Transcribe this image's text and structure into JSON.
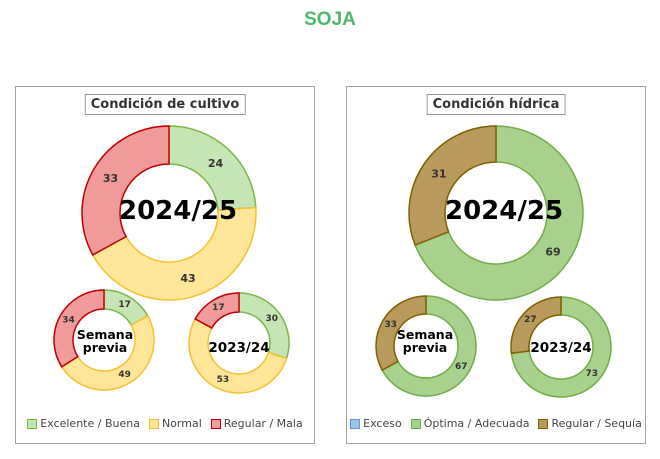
{
  "page_title": "SOJA",
  "chart_data": [
    {
      "type": "donut",
      "title": "Condición de cultivo",
      "legend": [
        {
          "name": "Excelente / Buena",
          "color": "#c6e5b4",
          "border": "#7ab648"
        },
        {
          "name": "Normal",
          "color": "#ffe699",
          "border": "#f2c230"
        },
        {
          "name": "Regular / Mala",
          "color": "#f19a9a",
          "border": "#c00000"
        }
      ],
      "rings": [
        {
          "label": "2024/25",
          "values": [
            24,
            43,
            33
          ]
        },
        {
          "label_lines": [
            "Semana",
            "previa"
          ],
          "values": [
            17,
            49,
            34
          ]
        },
        {
          "label": "2023/24",
          "values": [
            30,
            53,
            17
          ]
        }
      ]
    },
    {
      "type": "donut",
      "title": "Condición hídrica",
      "legend": [
        {
          "name": "Exceso",
          "color": "#9dc3e6",
          "border": "#5b9bd5"
        },
        {
          "name": "Óptima / Adecuada",
          "color": "#a9d18e",
          "border": "#70ad47"
        },
        {
          "name": "Regular / Sequía",
          "color": "#b99a5c",
          "border": "#7f6000"
        }
      ],
      "rings": [
        {
          "label": "2024/25",
          "values": [
            0,
            69,
            31
          ]
        },
        {
          "label_lines": [
            "Semana",
            "previa"
          ],
          "values": [
            0,
            67,
            33
          ]
        },
        {
          "label": "2023/24",
          "values": [
            0,
            73,
            27
          ]
        }
      ]
    }
  ]
}
